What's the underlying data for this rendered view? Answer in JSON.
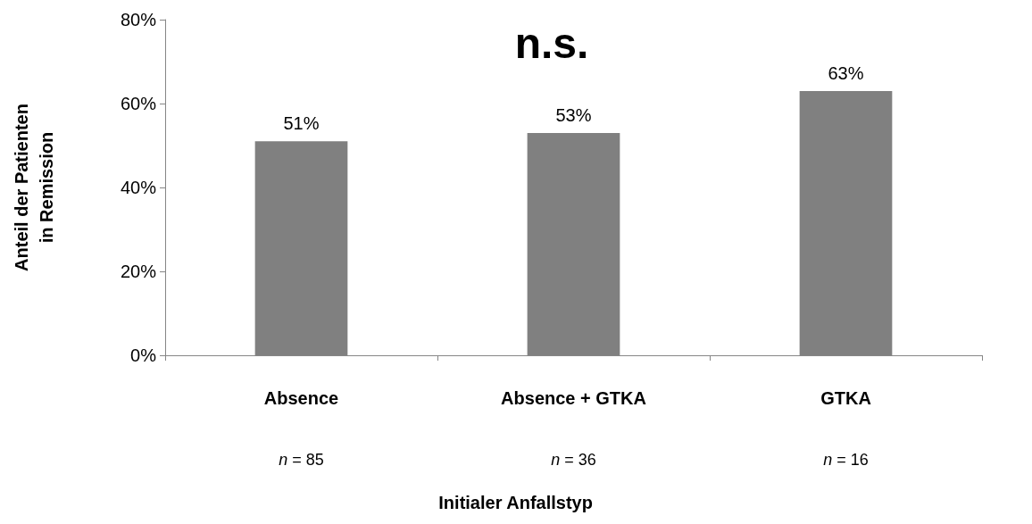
{
  "chart_data": {
    "type": "bar",
    "categories": [
      "Absence",
      "Absence + GTKA",
      "GTKA"
    ],
    "values": [
      51,
      53,
      63
    ],
    "value_labels": [
      "51%",
      "53%",
      "63%"
    ],
    "color": "#808080",
    "ylabel": "Anteil der Patienten\nin Remission",
    "xlabel": "Initialer Anfallstyp",
    "ylim": [
      0,
      80
    ],
    "yticks": [
      {
        "value": 0,
        "label": "0%"
      },
      {
        "value": 20,
        "label": "20%"
      },
      {
        "value": 40,
        "label": "40%"
      },
      {
        "value": 60,
        "label": "60%"
      },
      {
        "value": 80,
        "label": "80%"
      }
    ],
    "grid": false,
    "annotations": [
      "n.s.",
      "n = 85",
      "n = 36",
      "n = 16"
    ]
  }
}
